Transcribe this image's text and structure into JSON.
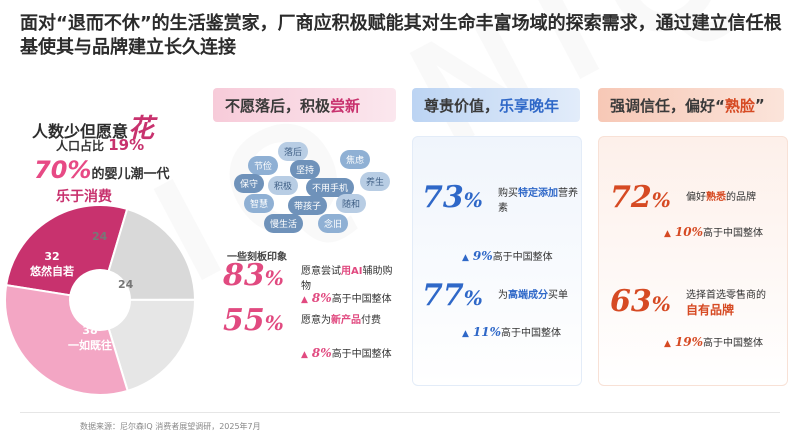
{
  "watermark": "NIQ NIQ NIQ",
  "title": "面对“退而不休”的生活鉴赏家，厂商应积极赋能其对生命丰富场域的探索需求，通过建立信任根基使其与品牌建立长久连接",
  "left": {
    "line1_prefix": "人数少但愿意",
    "line1_big": "花",
    "line2_prefix": "人口占比",
    "line2_pct": "19%",
    "line3_pct": "70%",
    "line3_suffix": "的婴儿潮一代",
    "line4": "乐于消费",
    "donut": {
      "segments": [
        {
          "label": "32",
          "name": "悠然自若",
          "value": 32,
          "color": "#c8326e"
        },
        {
          "label": "24",
          "name": "",
          "value": 24,
          "color": "#d9d9d9"
        },
        {
          "label": "24",
          "name": "",
          "value": 24,
          "color": "#e6e6e6"
        },
        {
          "label": "38",
          "name": "一如既往",
          "value": 38,
          "color": "#f3a6c4"
        }
      ]
    }
  },
  "col1": {
    "head_prefix": "不愿落后，积极",
    "head_hl": "尝新",
    "tags": [
      "落后",
      "节俭",
      "坚持",
      "焦虑",
      "保守",
      "积极",
      "不用手机",
      "养生",
      "智慧",
      "带孩子",
      "随和",
      "慢生活",
      "念旧"
    ],
    "impress": "一些刻板印象",
    "stat1": {
      "num": "83",
      "pc": "%",
      "desc_a": "愿意尝试",
      "desc_em": "用AI",
      "desc_b": "辅助购物",
      "cmp_v": "8%",
      "cmp_text": "高于中国整体"
    },
    "stat2": {
      "num": "55",
      "pc": "%",
      "desc_a": "愿意为",
      "desc_em": "新产品",
      "desc_b": "付费",
      "cmp_v": "8%",
      "cmp_text": "高于中国整体"
    }
  },
  "col2": {
    "head_prefix": "尊贵价值，",
    "head_hl": "乐享晚年",
    "stat1": {
      "num": "73",
      "pc": "%",
      "desc_a": "购买",
      "desc_em": "特定添加",
      "desc_b": "营养素",
      "cmp_v": "9%",
      "cmp_text": "高于中国整体"
    },
    "stat2": {
      "num": "77",
      "pc": "%",
      "desc_a": "为",
      "desc_em": "高端成分",
      "desc_b": "买单",
      "cmp_v": "11%",
      "cmp_text": "高于中国整体"
    }
  },
  "col3": {
    "head_prefix": "强调信任，偏好“",
    "head_hl": "熟脸",
    "head_suffix": "”",
    "stat1": {
      "num": "72",
      "pc": "%",
      "desc_a": "偏好",
      "desc_em": "熟悉",
      "desc_b": "的品牌",
      "cmp_v": "10%",
      "cmp_text": "高于中国整体"
    },
    "stat2": {
      "num": "63",
      "pc": "%",
      "desc_a": "选择首选零售商的",
      "desc_em": "自有品牌",
      "desc_b": "",
      "cmp_v": "19%",
      "cmp_text": "高于中国整体"
    }
  },
  "footer": "数据来源：尼尔森IQ 消费者展望调研，2025年7月"
}
